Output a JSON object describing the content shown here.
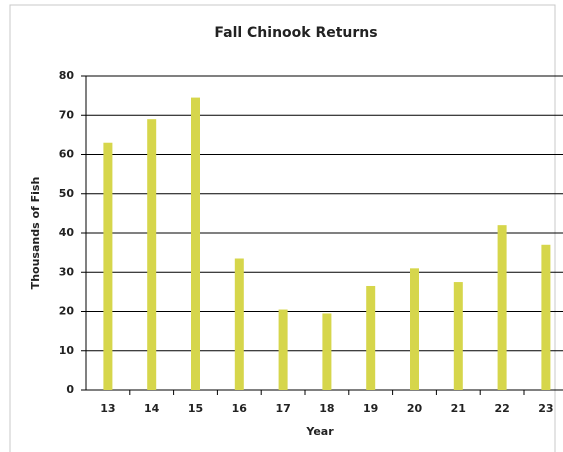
{
  "chart_data": {
    "type": "bar",
    "title": "Fall Chinook Returns",
    "x_label": "Year",
    "y_label": "Thousands of Fish",
    "categories": [
      "13",
      "14",
      "15",
      "16",
      "17",
      "18",
      "19",
      "20",
      "21",
      "22",
      "23"
    ],
    "values": [
      63,
      69,
      74.5,
      33.5,
      20.5,
      19.5,
      26.5,
      31,
      27.5,
      42,
      37
    ],
    "color": "#d6d64b",
    "ylim": [
      0,
      80
    ],
    "yticks": [
      0,
      10,
      20,
      30,
      40,
      50,
      60,
      70,
      80
    ],
    "grid": true
  }
}
